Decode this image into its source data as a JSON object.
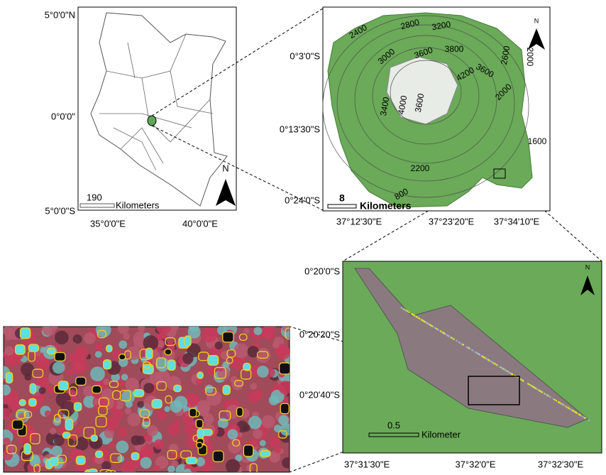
{
  "panels": [
    {
      "lat_labels": [
        "5°0'0\"N",
        "0°0'0\"",
        "5°0'0\"S"
      ],
      "lon_labels": [
        "35°0'0\"E",
        "40°0'0\"E"
      ],
      "scale": {
        "value": 190,
        "unit": "Kilometers"
      },
      "north": "N"
    },
    {
      "lat_labels": [
        "0°3'0\"S",
        "0°13'30\"S",
        "0°24'0\"S"
      ],
      "lon_labels": [
        "37°12'30\"E",
        "37°23'20\"E",
        "37°34'10\"E"
      ],
      "scale": {
        "value": 8,
        "unit": "Kilometers"
      },
      "north": "N",
      "contours": [
        2400,
        2800,
        3200,
        3000,
        3600,
        3800,
        4200,
        3600,
        2600,
        2000,
        4000,
        3400,
        3600,
        2000,
        1600,
        2200,
        800
      ]
    },
    {
      "lat_labels": [
        "0°20'0\"S",
        "0°20'20\"S",
        "0°20'40\"S"
      ],
      "lon_labels": [
        "37°31'30\"E",
        "37°32'0\"E",
        "37°32'30\"E"
      ],
      "scale": {
        "value": 0.5,
        "unit": "Kilometer"
      },
      "north": "N"
    }
  ]
}
